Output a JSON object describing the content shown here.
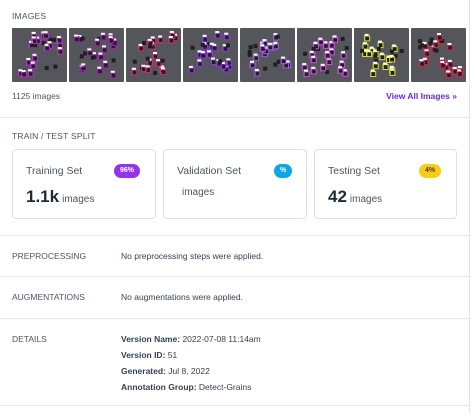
{
  "images": {
    "section_label": "IMAGES",
    "count_text": "1125 images",
    "view_all_label": "View All Images »",
    "thumbnails": [
      {
        "name": "thumb-1",
        "accent": "#c026d3"
      },
      {
        "name": "thumb-2",
        "accent": "#a21caf"
      },
      {
        "name": "thumb-3",
        "accent": "#db2777"
      },
      {
        "name": "thumb-4",
        "accent": "#9333ea"
      },
      {
        "name": "thumb-5",
        "accent": "#a855f7"
      },
      {
        "name": "thumb-6",
        "accent": "#d946ef"
      },
      {
        "name": "thumb-7",
        "accent": "#d9e021"
      },
      {
        "name": "thumb-8",
        "accent": "#e11d48"
      }
    ]
  },
  "split": {
    "section_label": "TRAIN / TEST SPLIT",
    "training": {
      "title": "Training Set",
      "badge": "96%",
      "value": "1.1k",
      "unit": "images",
      "badge_color": "#9333ea"
    },
    "validation": {
      "title": "Validation Set",
      "badge": "%",
      "unit": "images",
      "badge_color": "#0ea5e9"
    },
    "testing": {
      "title": "Testing Set",
      "badge": "4%",
      "value": "42",
      "unit": "images",
      "badge_color": "#facc15"
    }
  },
  "preprocessing": {
    "label": "PREPROCESSING",
    "text": "No preprocessing steps were applied."
  },
  "augmentations": {
    "label": "AUGMENTATIONS",
    "text": "No augmentations were applied."
  },
  "details": {
    "label": "DETAILS",
    "version_name_key": "Version Name:",
    "version_name_value": "2022-07-08 11:14am",
    "version_id_key": "Version ID:",
    "version_id_value": "51",
    "generated_key": "Generated:",
    "generated_value": "Jul 8, 2022",
    "annotation_group_key": "Annotation Group:",
    "annotation_group_value": "Detect-Grains"
  }
}
